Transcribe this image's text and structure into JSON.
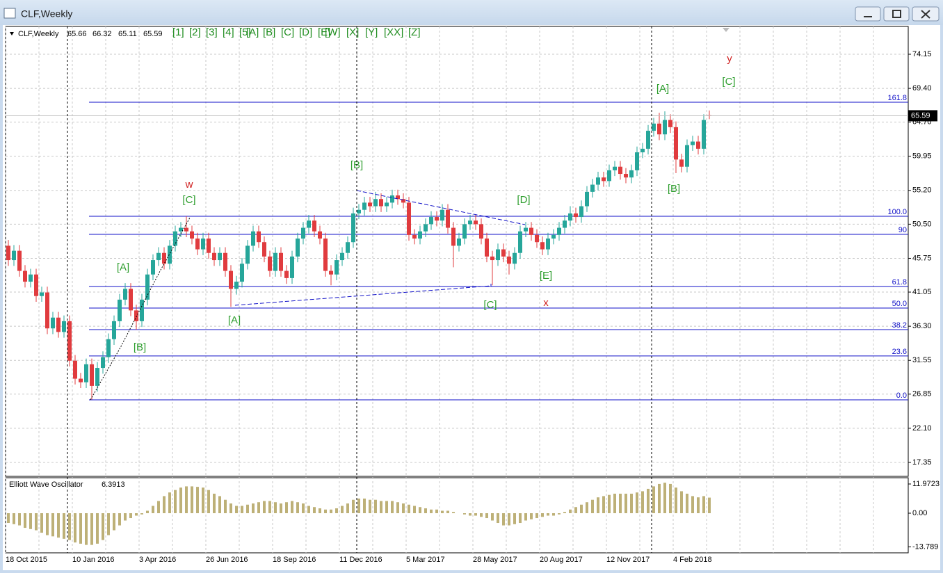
{
  "window": {
    "title": "CLF,Weekly"
  },
  "toolbar": [
    "[1]",
    "[2]",
    "[3]",
    "[4]",
    "[5]",
    "[A]",
    "[B]",
    "[C]",
    "[D]",
    "[E]",
    "[W]",
    "[X]",
    "[Y]",
    "[XX]",
    "[Z]"
  ],
  "chart_data": [
    {
      "type": "candlestick",
      "title": "CLF,Weekly",
      "categories": [
        "18 Oct 2015",
        null,
        null,
        null,
        null,
        null,
        null,
        null,
        null,
        null,
        null,
        null,
        "10 Jan 2016",
        null,
        null,
        null,
        null,
        null,
        null,
        null,
        null,
        null,
        null,
        null,
        "3 Apr 2016",
        null,
        null,
        null,
        null,
        null,
        null,
        null,
        null,
        null,
        null,
        null,
        "26 Jun 2016",
        null,
        null,
        null,
        null,
        null,
        null,
        null,
        null,
        null,
        null,
        null,
        "18 Sep 2016",
        null,
        null,
        null,
        null,
        null,
        null,
        null,
        null,
        null,
        null,
        null,
        "11 Dec 2016",
        null,
        null,
        null,
        null,
        null,
        null,
        null,
        null,
        null,
        null,
        null,
        "5 Mar 2017",
        null,
        null,
        null,
        null,
        null,
        null,
        null,
        null,
        null,
        null,
        null,
        "28 May 2017",
        null,
        null,
        null,
        null,
        null,
        null,
        null,
        null,
        null,
        null,
        null,
        "20 Aug 2017",
        null,
        null,
        null,
        null,
        null,
        null,
        null,
        null,
        null,
        null,
        null,
        "12 Nov 2017",
        null,
        null,
        null,
        null,
        null,
        null,
        null,
        null,
        null,
        null,
        null,
        "4 Feb 2018",
        null,
        null,
        null,
        null,
        null,
        null
      ],
      "open": [
        47.5,
        45.5,
        46.8,
        44,
        42.5,
        43.5,
        40.5,
        41,
        36,
        37.5,
        35.5,
        37,
        31.5,
        29,
        28.5,
        31,
        28,
        30.5,
        32,
        34.5,
        37,
        40,
        41.5,
        38.5,
        37,
        40,
        43.5,
        45.5,
        46.5,
        45,
        47.5,
        49.5,
        50,
        49.5,
        48.5,
        47,
        48.5,
        46.5,
        45.5,
        46.5,
        44,
        41.5,
        42.5,
        45,
        47.5,
        49.5,
        48,
        46,
        44,
        46.5,
        44,
        43,
        46,
        48.5,
        50,
        51,
        49.5,
        48.5,
        44,
        43.5,
        45.5,
        46.5,
        48,
        52,
        52.5,
        53.5,
        53,
        54,
        53,
        53.5,
        54.5,
        54,
        53.5,
        49,
        48.5,
        49.5,
        50.5,
        51.5,
        51,
        52.5,
        50,
        47.5,
        48.5,
        50.5,
        51,
        50.5,
        48.5,
        46,
        45.5,
        47,
        46,
        45,
        46.5,
        49.5,
        50,
        49,
        48,
        47,
        48.5,
        49,
        50,
        51,
        52,
        51.5,
        53,
        55,
        56,
        57,
        56.5,
        58,
        58.5,
        57.5,
        57,
        58,
        60.5,
        61,
        63.5,
        64.5,
        63,
        65,
        64,
        59.5,
        58.5,
        61.5,
        62,
        61,
        65.66
      ],
      "high": [
        48.3,
        47.6,
        47.6,
        44.8,
        44.3,
        44.3,
        41.8,
        41.8,
        38.3,
        38.3,
        37.8,
        37.8,
        32.3,
        29.8,
        31.8,
        31.8,
        31.3,
        32.8,
        35.3,
        37.8,
        40.8,
        42.3,
        42.3,
        39.3,
        40.8,
        44.3,
        46.3,
        47.3,
        47.3,
        48.3,
        50.3,
        50.8,
        51.6,
        50.3,
        49.3,
        49.3,
        49.3,
        47.3,
        47.3,
        47.3,
        44.8,
        43.3,
        45.8,
        48.3,
        50.3,
        50.3,
        48.8,
        46.8,
        47.3,
        47.3,
        44.8,
        46.8,
        49.3,
        50.8,
        51.8,
        51.8,
        50.3,
        49.3,
        44.8,
        46.3,
        47.3,
        48.8,
        52.8,
        53.3,
        54.3,
        54.3,
        55,
        54.8,
        54.3,
        55.3,
        55.3,
        54.8,
        54.3,
        49.8,
        50.3,
        51.3,
        52.3,
        52.3,
        53.3,
        53.3,
        50.8,
        49.3,
        51.3,
        51.8,
        51.8,
        51.3,
        49.3,
        46.8,
        47.8,
        47.8,
        46.8,
        47.3,
        50.3,
        50.8,
        50.8,
        49.8,
        48.8,
        49.3,
        49.8,
        50.8,
        51.8,
        53,
        52.8,
        53.8,
        55.8,
        56.8,
        57.8,
        57.8,
        58.8,
        59.3,
        59.3,
        58.3,
        58.8,
        61.3,
        61.8,
        64.3,
        65.3,
        66,
        66.2,
        65.8,
        64.8,
        60.3,
        62.3,
        62.8,
        62.8,
        65.8,
        66.32
      ],
      "low": [
        44.7,
        44.7,
        43.2,
        41.7,
        41.7,
        39.7,
        39.7,
        35.2,
        35.2,
        34.7,
        34.7,
        30.7,
        28.2,
        27.7,
        27.7,
        26.1,
        27.2,
        29.7,
        31.2,
        33.7,
        36.2,
        39.2,
        37.7,
        35.8,
        36.2,
        39.2,
        42.7,
        44.7,
        44.2,
        44.2,
        46.7,
        48.7,
        48.7,
        47.7,
        46.2,
        46.2,
        45.7,
        44.7,
        44.7,
        43.2,
        39,
        40.7,
        41.7,
        44.2,
        46.7,
        47.2,
        45.2,
        43.2,
        43.2,
        43.2,
        42.2,
        42.2,
        45.2,
        47.7,
        49.2,
        48.7,
        47.7,
        43.2,
        42,
        42.7,
        44.7,
        45.7,
        47.2,
        51.2,
        51.7,
        52.2,
        52.2,
        52.2,
        52.2,
        52.7,
        53.2,
        52.7,
        48.2,
        47.7,
        47.7,
        48.7,
        49.7,
        50.2,
        50.2,
        49.2,
        44.5,
        46.7,
        47.7,
        49.7,
        49.7,
        47.7,
        45.2,
        42,
        44.7,
        45.2,
        43.5,
        44.2,
        45.7,
        48.7,
        48.2,
        47.2,
        46.2,
        46.2,
        47.7,
        48.2,
        49.2,
        50.2,
        50.7,
        50.7,
        52.2,
        54.2,
        55.2,
        55.7,
        55.7,
        57.2,
        56.7,
        56.2,
        56.2,
        57.2,
        59.7,
        60.2,
        62.7,
        62.2,
        62.2,
        63.2,
        57.6,
        57.7,
        57.7,
        60.7,
        60.2,
        60.2,
        65.11
      ],
      "close": [
        45.5,
        46.8,
        44,
        42.5,
        43.5,
        40.5,
        41,
        36,
        37.5,
        35.5,
        37,
        31.5,
        29,
        28.5,
        31,
        28,
        30.5,
        32,
        34.5,
        37,
        40,
        41.5,
        38.5,
        37,
        40,
        43.5,
        45.5,
        46.5,
        45,
        47.5,
        49.5,
        50,
        49.5,
        48.5,
        47,
        48.5,
        46.5,
        45.5,
        46.5,
        44,
        41.5,
        42.5,
        45,
        47.5,
        49.5,
        48,
        46,
        44,
        46.5,
        44,
        43,
        46,
        48.5,
        50,
        51,
        49.5,
        48.5,
        44,
        43.5,
        45.5,
        46.5,
        48,
        52,
        52.5,
        53.5,
        53,
        54,
        53,
        53.5,
        54.5,
        54,
        53.5,
        49,
        48.5,
        49.5,
        50.5,
        51.5,
        51,
        52.5,
        50,
        47.5,
        48.5,
        50.5,
        51,
        50.5,
        48.5,
        46,
        45.5,
        47,
        46,
        45,
        46.5,
        49.5,
        50,
        49,
        48,
        47,
        48.5,
        49,
        50,
        51,
        52,
        51.5,
        53,
        55,
        56,
        57,
        56.5,
        58,
        58.5,
        57.5,
        57,
        58,
        60.5,
        61,
        63.5,
        64.5,
        63,
        65,
        64,
        59.5,
        58.5,
        61.5,
        62,
        61,
        65,
        65.59
      ],
      "up_color": "#26a69a",
      "down_color": "#e03b3e",
      "ylim": [
        15.41,
        78.02
      ],
      "yticks": [
        17.35,
        {
          "value": 22.1,
          "label": "22.10"
        },
        26.85,
        31.55,
        {
          "value": 36.3,
          "label": "36.30"
        },
        41.05,
        45.75,
        {
          "value": 50.5,
          "label": "50.50"
        },
        {
          "value": 55.2,
          "label": "55.20"
        },
        59.95,
        {
          "value": 64.7,
          "label": "64.70"
        },
        {
          "value": 69.4,
          "label": "69.40"
        },
        74.15
      ],
      "grid": true,
      "fib_color": "#1010c8",
      "fib_levels": [
        {
          "label": "161.8",
          "price": 67.47
        },
        {
          "label": "100.0",
          "price": 51.6
        },
        {
          "label": "90",
          "price": 49.09
        },
        {
          "label": "61.8",
          "price": 41.83
        },
        {
          "label": "50.0",
          "price": 38.83
        },
        {
          "label": "38.2",
          "price": 35.83
        },
        {
          "label": "23.6",
          "price": 32.16
        },
        {
          "label": "0.0",
          "price": 26.06
        }
      ],
      "annotations": [
        {
          "text": "[A]",
          "color": "#2e9e2e"
        },
        {
          "text": "[B]",
          "color": "#2e9e2e"
        },
        {
          "text": "[C]",
          "color": "#2e9e2e"
        },
        {
          "text": "w",
          "color": "#d02020"
        },
        {
          "text": "[A]",
          "color": "#2e9e2e"
        },
        {
          "text": "[B]",
          "color": "#2e9e2e"
        },
        {
          "text": "[C]",
          "color": "#2e9e2e"
        },
        {
          "text": "[D]",
          "color": "#2e9e2e"
        },
        {
          "text": "[E]",
          "color": "#2e9e2e"
        },
        {
          "text": "x",
          "color": "#d02020"
        },
        {
          "text": "[A]",
          "color": "#2e9e2e"
        },
        {
          "text": "[B]",
          "color": "#2e9e2e"
        },
        {
          "text": "[C]",
          "color": "#2e9e2e"
        },
        {
          "text": "y",
          "color": "#d02020"
        }
      ]
    },
    {
      "type": "bar",
      "title": "Elliott Wave Oscillator",
      "values": [
        -4,
        -4.5,
        -5,
        -6,
        -6.5,
        -7,
        -8,
        -9,
        -9.5,
        -10,
        -10.5,
        -11,
        -12,
        -12.5,
        -13,
        -13,
        -12.5,
        -11,
        -9,
        -7,
        -5,
        -3,
        -2,
        -1,
        -0.5,
        1,
        3,
        5,
        7,
        8.5,
        9.5,
        10.5,
        11,
        11,
        10.8,
        10.5,
        9.5,
        8,
        7,
        5.5,
        4,
        3,
        3,
        3.5,
        4,
        4.5,
        5,
        5,
        4.5,
        4,
        4.5,
        5,
        4.5,
        4,
        3,
        2.5,
        2,
        1.5,
        1.5,
        2,
        3,
        4,
        5.5,
        6,
        6,
        5.5,
        5.5,
        5,
        5,
        5,
        4.5,
        4,
        3.5,
        3,
        2.5,
        2,
        1.5,
        1.5,
        1,
        1,
        0.5,
        0,
        -0.5,
        -1,
        -1,
        -1.5,
        -2,
        -3,
        -4,
        -5,
        -5,
        -4.5,
        -4,
        -3,
        -2.5,
        -2,
        -1.5,
        -1,
        -1,
        -0.5,
        0.5,
        1.5,
        2.5,
        3.5,
        4.5,
        5.5,
        6.5,
        7,
        7.5,
        8,
        8,
        8,
        8,
        8.5,
        9,
        10,
        11,
        12,
        12.5,
        12,
        10.5,
        9,
        8,
        7,
        6.5,
        7,
        6.3913
      ],
      "color": "#bdb077",
      "ylim": [
        -16.25,
        14.54
      ],
      "yticks": [
        11.9723,
        {
          "value": 0,
          "label": "0.00"
        },
        -13.789
      ]
    }
  ]
}
